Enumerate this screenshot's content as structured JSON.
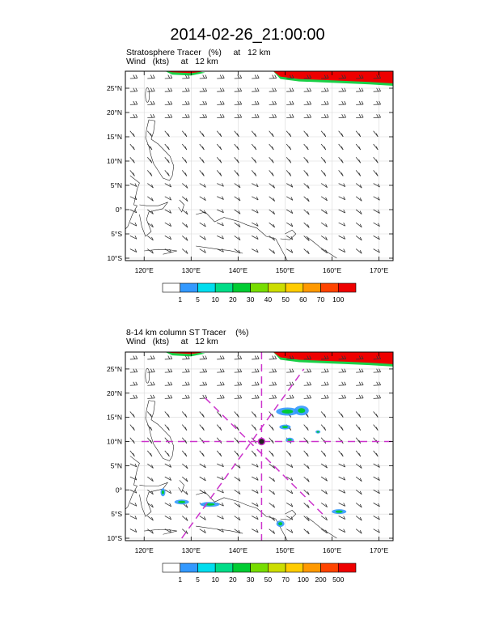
{
  "title": "2014-02-26_21:00:00",
  "panels": [
    {
      "field_label": "Stratosphere Tracer   (%)     at   12 km",
      "wind_label": "Wind   (kts)     at   12 km",
      "lon_ticks": [
        "120°E",
        "130°E",
        "140°E",
        "150°E",
        "160°E",
        "170°E"
      ],
      "lat_ticks": [
        "25°N",
        "20°N",
        "15°N",
        "10°N",
        "5°N",
        "0°",
        "5°S",
        "10°S"
      ],
      "colorbar": {
        "levels": [
          "1",
          "5",
          "10",
          "20",
          "30",
          "40",
          "50",
          "60",
          "70",
          "100"
        ],
        "colors": [
          "#ffffff",
          "#3399ff",
          "#00ddee",
          "#00dd88",
          "#00cc33",
          "#77dd00",
          "#ccdd00",
          "#ffcc00",
          "#ff9900",
          "#ff4400",
          "#ee0000"
        ]
      }
    },
    {
      "field_label": "8-14 km column ST Tracer    (%)",
      "wind_label": "Wind   (kts)     at   12 km",
      "lon_ticks": [
        "120°E",
        "130°E",
        "140°E",
        "150°E",
        "160°E",
        "170°E"
      ],
      "lat_ticks": [
        "25°N",
        "20°N",
        "15°N",
        "10°N",
        "5°N",
        "0°",
        "5°S",
        "10°S"
      ],
      "colorbar": {
        "levels": [
          "1",
          "5",
          "10",
          "20",
          "30",
          "50",
          "70",
          "100",
          "200",
          "500"
        ],
        "colors": [
          "#ffffff",
          "#3399ff",
          "#00ddee",
          "#00dd88",
          "#00cc33",
          "#77dd00",
          "#ccdd00",
          "#ffcc00",
          "#ff9900",
          "#ff4400",
          "#ee0000"
        ]
      }
    }
  ],
  "map": {
    "lon_range": [
      116,
      173
    ],
    "lat_range": [
      -10.5,
      28.5
    ],
    "marker": {
      "lon": 145,
      "lat": 10
    },
    "marker_color": "#cc33cc"
  }
}
